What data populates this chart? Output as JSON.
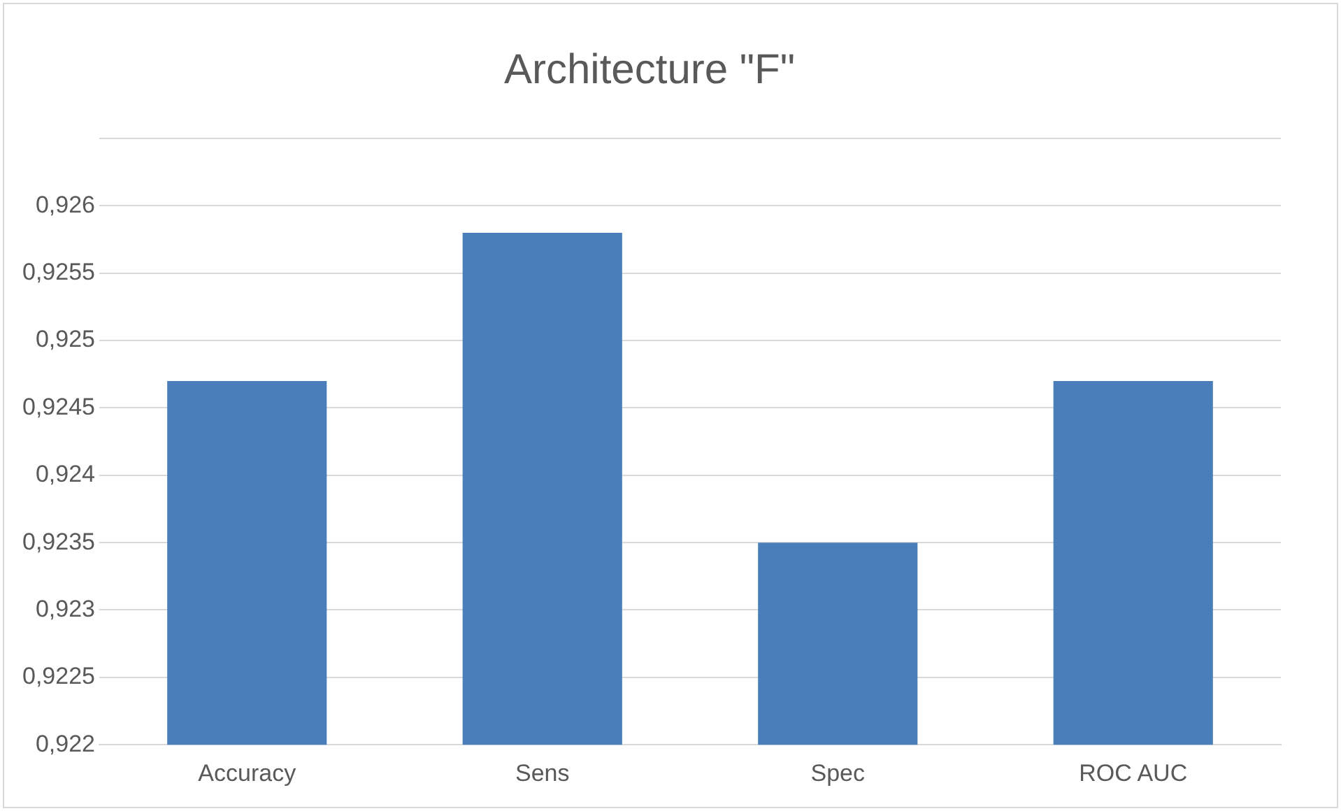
{
  "chart_data": {
    "type": "bar",
    "title": "Architecture \"F\"",
    "categories": [
      "Accuracy",
      "Sens",
      "Spec",
      "ROC AUC"
    ],
    "values": [
      0.9247,
      0.9258,
      0.9235,
      0.9247
    ],
    "color": "#4a7ebb",
    "ylim": [
      0.922,
      0.9265
    ],
    "yticks": [
      {
        "value": 0.922,
        "label": "0,922"
      },
      {
        "value": 0.9225,
        "label": "0,9225"
      },
      {
        "value": 0.923,
        "label": "0,923"
      },
      {
        "value": 0.9235,
        "label": "0,9235"
      },
      {
        "value": 0.924,
        "label": "0,924"
      },
      {
        "value": 0.9245,
        "label": "0,9245"
      },
      {
        "value": 0.925,
        "label": "0,925"
      },
      {
        "value": 0.9255,
        "label": "0,9255"
      },
      {
        "value": 0.926,
        "label": "0,926"
      },
      {
        "value": 0.9265,
        "label": null
      }
    ],
    "grid": "y"
  }
}
